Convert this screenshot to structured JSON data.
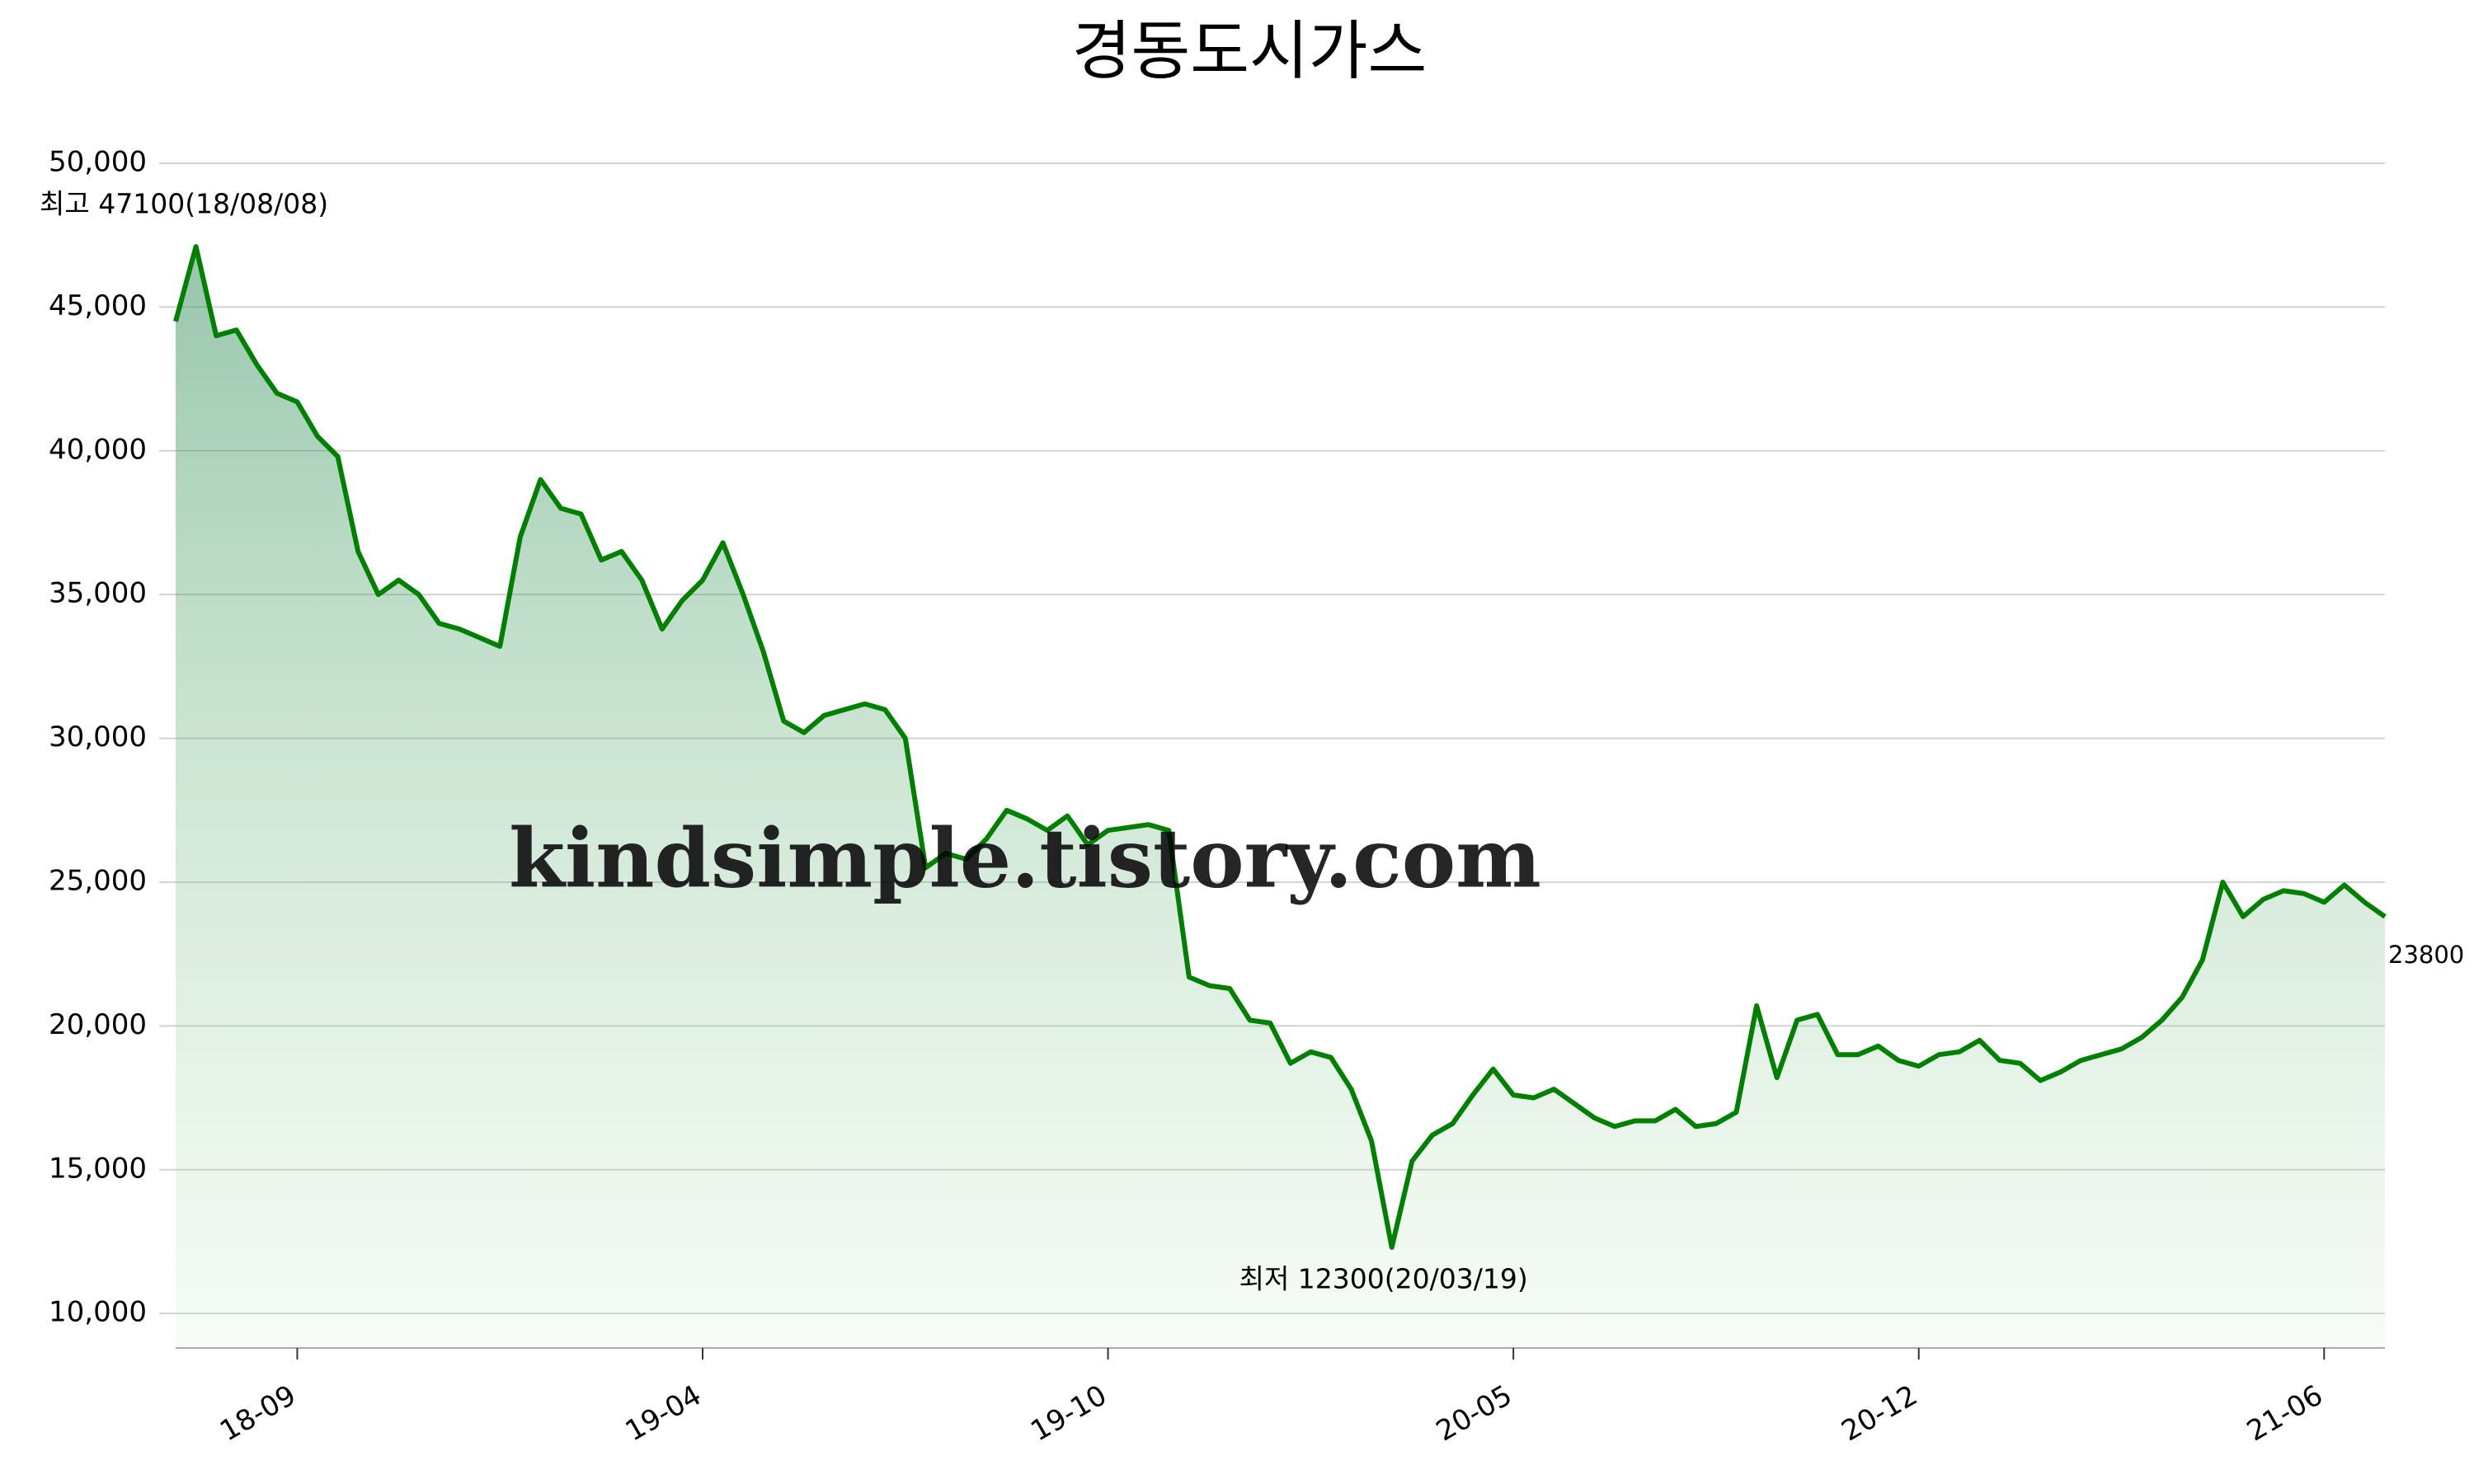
{
  "chart_data": {
    "type": "area-line",
    "title": "경동도시가스",
    "categories": [
      null,
      null,
      null,
      null,
      null,
      null,
      "18-09",
      null,
      null,
      null,
      null,
      null,
      null,
      null,
      null,
      null,
      null,
      null,
      null,
      null,
      null,
      null,
      null,
      null,
      null,
      null,
      "19-04",
      null,
      null,
      null,
      null,
      null,
      null,
      null,
      null,
      null,
      null,
      null,
      null,
      null,
      null,
      null,
      null,
      null,
      null,
      null,
      "19-10",
      null,
      null,
      null,
      null,
      null,
      null,
      null,
      null,
      null,
      null,
      null,
      null,
      null,
      null,
      null,
      null,
      null,
      null,
      null,
      "20-05",
      null,
      null,
      null,
      null,
      null,
      null,
      null,
      null,
      null,
      null,
      null,
      null,
      null,
      null,
      null,
      null,
      null,
      null,
      null,
      "20-12",
      null,
      null,
      null,
      null,
      null,
      null,
      null,
      null,
      null,
      null,
      null,
      null,
      null,
      null,
      null,
      null,
      null,
      null,
      null,
      "21-06",
      null,
      null,
      null
    ],
    "values": [
      44500,
      47100,
      44000,
      44200,
      43000,
      42000,
      41700,
      40500,
      39800,
      36500,
      35000,
      35500,
      35000,
      34000,
      33800,
      33500,
      33200,
      37000,
      39000,
      38000,
      37800,
      36200,
      36500,
      35500,
      33800,
      34800,
      35500,
      36800,
      35000,
      33000,
      30600,
      30200,
      30800,
      31000,
      31200,
      31000,
      30000,
      25500,
      26000,
      25800,
      26500,
      27500,
      27200,
      26800,
      27300,
      26300,
      26800,
      26900,
      27000,
      26800,
      21700,
      21400,
      21300,
      20200,
      20100,
      18700,
      19100,
      18900,
      17800,
      16000,
      12300,
      15300,
      16200,
      16600,
      17600,
      18500,
      17600,
      17500,
      17800,
      17300,
      16800,
      16500,
      16700,
      16700,
      17100,
      16500,
      16600,
      17000,
      20700,
      18200,
      20200,
      20400,
      19000,
      19000,
      19300,
      18800,
      18600,
      19000,
      19100,
      19500,
      18800,
      18700,
      18100,
      18400,
      18800,
      19000,
      19200,
      19600,
      20200,
      21000,
      22300,
      25000,
      23800,
      24400,
      24700,
      24600,
      24300,
      24900,
      24300,
      23800
    ],
    "color": "#008000",
    "ylim": [
      8800,
      50000
    ],
    "yticks": [
      {
        "value": 10000,
        "label": "10,000"
      },
      {
        "value": 15000,
        "label": "15,000"
      },
      {
        "value": 20000,
        "label": "20,000"
      },
      {
        "value": 25000,
        "label": "25,000"
      },
      {
        "value": 30000,
        "label": "30,000"
      },
      {
        "value": 35000,
        "label": "35,000"
      },
      {
        "value": 40000,
        "label": "40,000"
      },
      {
        "value": 45000,
        "label": "45,000"
      },
      {
        "value": 50000,
        "label": "50,000"
      }
    ],
    "grid": true,
    "annotations": [
      {
        "text": "최고 47100(18/08/08)",
        "color": "#ff0000"
      },
      {
        "text": "최저 12300(20/03/19)",
        "color": "#0000ff"
      }
    ],
    "watermark": "kindsimple.tistory.com"
  }
}
